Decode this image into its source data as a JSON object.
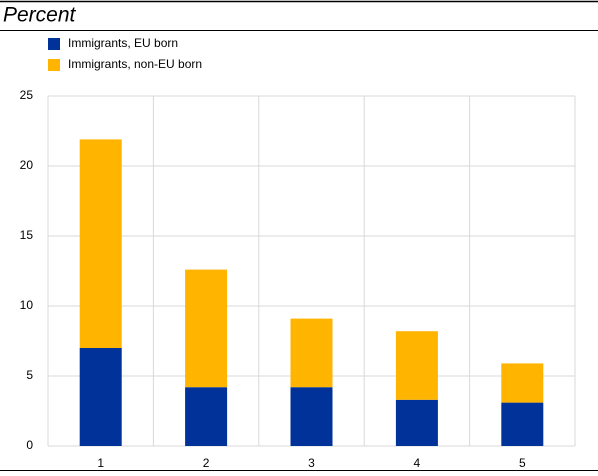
{
  "chart_data": {
    "type": "stacked_bar",
    "title": "Percent",
    "categories": [
      "1",
      "2",
      "3",
      "4",
      "5"
    ],
    "series": [
      {
        "name": "Immigrants, EU born",
        "color": "#003299",
        "values": [
          7.0,
          4.2,
          4.2,
          3.3,
          3.1
        ]
      },
      {
        "name": "Immigrants, non-EU born",
        "color": "#ffb400",
        "values": [
          14.9,
          8.4,
          4.9,
          4.9,
          2.8
        ]
      }
    ],
    "ylim": [
      0,
      25
    ],
    "yticks": [
      0,
      5,
      10,
      15,
      20,
      25
    ],
    "grid": true,
    "legend": "top-left"
  }
}
